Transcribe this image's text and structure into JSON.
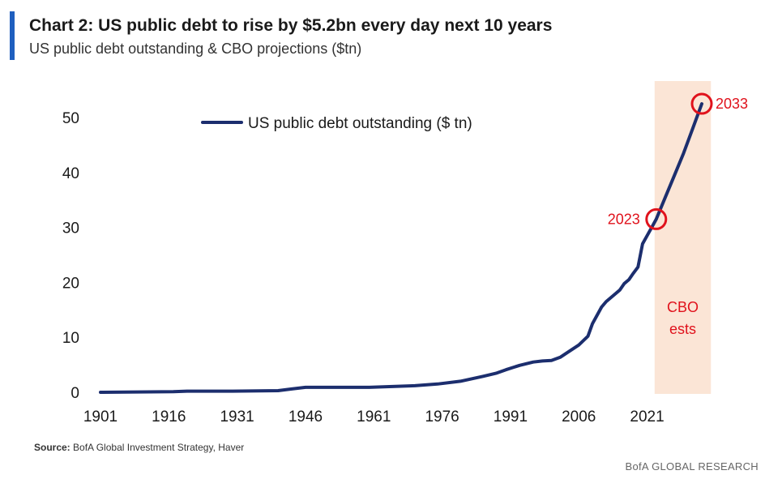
{
  "header": {
    "title": "Chart 2: US public debt to rise by $5.2bn every day next 10 years",
    "subtitle": "US public debt outstanding & CBO projections ($tn)"
  },
  "footer": {
    "source_label": "Source:",
    "source_text": "BofA Global Investment Strategy, Haver",
    "brand": "BofA GLOBAL RESEARCH"
  },
  "colors": {
    "line": "#1c2e6e",
    "projection_band": "#fbe5d6",
    "annotation": "#e0121c",
    "accent_bar": "#1f5fbf"
  },
  "chart_data": {
    "type": "line",
    "title": "",
    "xlabel": "",
    "ylabel": "",
    "xlim": [
      1901,
      2033
    ],
    "ylim": [
      0,
      50
    ],
    "x_ticks": [
      "1901",
      "1916",
      "1931",
      "1946",
      "1961",
      "1976",
      "1991",
      "2006",
      "2021"
    ],
    "y_ticks": [
      "0",
      "10",
      "20",
      "30",
      "40",
      "50"
    ],
    "grid": false,
    "legend_position": "top-center",
    "series": [
      {
        "name": "US public debt outstanding ($ tn)",
        "x": [
          1901,
          1917,
          1920,
          1930,
          1940,
          1943,
          1946,
          1950,
          1960,
          1970,
          1975,
          1980,
          1985,
          1988,
          1990,
          1993,
          1996,
          1998,
          2000,
          2002,
          2004,
          2006,
          2008,
          2009,
          2010,
          2011,
          2012,
          2013,
          2014,
          2015,
          2016,
          2017,
          2018,
          2019,
          2020,
          2021,
          2022,
          2023,
          2025,
          2027,
          2029,
          2031,
          2033
        ],
        "y": [
          0,
          0.1,
          0.2,
          0.2,
          0.3,
          0.6,
          0.9,
          0.9,
          0.9,
          1.2,
          1.5,
          2.0,
          2.9,
          3.5,
          4.1,
          4.9,
          5.5,
          5.7,
          5.8,
          6.4,
          7.5,
          8.6,
          10.2,
          12.5,
          14.0,
          15.5,
          16.5,
          17.2,
          17.9,
          18.6,
          19.8,
          20.5,
          21.7,
          22.8,
          27.0,
          28.5,
          30.0,
          31.5,
          35.5,
          39.5,
          43.5,
          48.0,
          52.5
        ]
      }
    ],
    "projection_band": {
      "label": [
        "CBO",
        "ests"
      ],
      "x_start": 2023,
      "x_end": 2035
    },
    "annotations": [
      {
        "label": "2023",
        "x": 2023,
        "y": 31.5,
        "placement": "left"
      },
      {
        "label": "2033",
        "x": 2033,
        "y": 52.5,
        "placement": "right"
      }
    ]
  }
}
